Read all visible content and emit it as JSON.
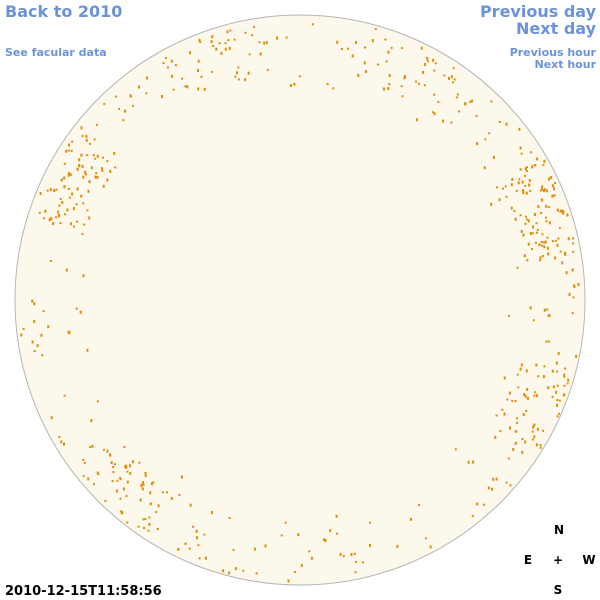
{
  "nav": {
    "back": "Back to 2010",
    "facular": "See facular data",
    "previous_day": "Previous day",
    "next_day": "Next day",
    "previous_hour": "Previous hour",
    "next_hour": "Next hour"
  },
  "timestamp": "2010-12-15T11:58:56",
  "compass": {
    "north": "N",
    "east": "E",
    "center": "+",
    "west": "W",
    "south": "S"
  }
}
